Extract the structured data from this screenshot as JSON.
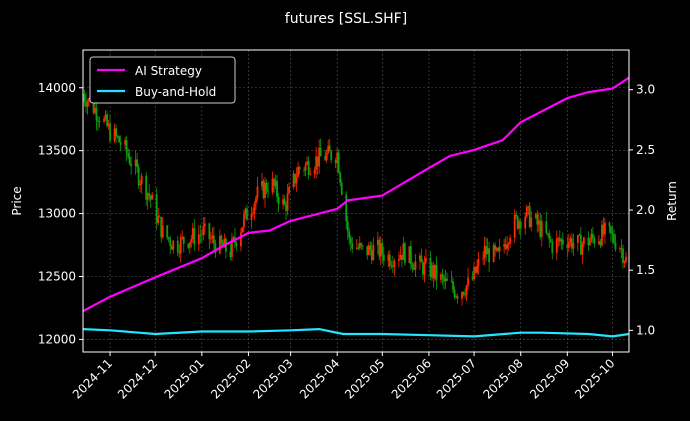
{
  "chart_data": {
    "type": "line",
    "title": "futures [SSL.SHF]",
    "xlabel": "",
    "ylabel": "Price",
    "ylabel_right": "Return",
    "xlim": [
      "2024-10-14",
      "2025-10-12"
    ],
    "ylim": [
      11900,
      14300
    ],
    "ylim_right": [
      0.82,
      3.33
    ],
    "grid": true,
    "legend_position": "top-left",
    "x_ticks": [
      "2024-11",
      "2024-12",
      "2025-01",
      "2025-02",
      "2025-03",
      "2025-04",
      "2025-05",
      "2025-06",
      "2025-07",
      "2025-08",
      "2025-09",
      "2025-10"
    ],
    "x_tick_dates": [
      "2024-11-01",
      "2024-12-01",
      "2025-01-01",
      "2025-02-01",
      "2025-03-01",
      "2025-04-01",
      "2025-05-01",
      "2025-06-01",
      "2025-07-01",
      "2025-08-01",
      "2025-09-01",
      "2025-10-01"
    ],
    "y_ticks": [
      "12000",
      "12500",
      "13000",
      "13500",
      "14000"
    ],
    "y_tick_values": [
      12000,
      12500,
      13000,
      13500,
      14000
    ],
    "y_ticks_right": [
      "1.0",
      "1.5",
      "2.0",
      "2.5",
      "3.0"
    ],
    "y_tick_values_right": [
      1.0,
      1.5,
      2.0,
      2.5,
      3.0
    ],
    "price_series": {
      "name": "",
      "up_color": "#ff2a00",
      "down_color": "#0fa00f",
      "dates": [
        "2024-10-14",
        "2024-10-24",
        "2024-11-01",
        "2024-11-09",
        "2024-11-18",
        "2024-11-27",
        "2024-12-06",
        "2024-12-14",
        "2024-12-23",
        "2025-01-02",
        "2025-01-11",
        "2025-01-20",
        "2025-01-29",
        "2025-02-07",
        "2025-02-16",
        "2025-02-25",
        "2025-03-06",
        "2025-03-14",
        "2025-03-22",
        "2025-04-01",
        "2025-04-09",
        "2025-04-18",
        "2025-04-27",
        "2025-05-06",
        "2025-05-15",
        "2025-05-24",
        "2025-06-02",
        "2025-06-11",
        "2025-06-20",
        "2025-06-29",
        "2025-07-08",
        "2025-07-17",
        "2025-07-26",
        "2025-08-04",
        "2025-08-13",
        "2025-08-22",
        "2025-08-31",
        "2025-09-09",
        "2025-09-18",
        "2025-09-27",
        "2025-10-06",
        "2025-10-11"
      ],
      "values": [
        13950,
        13800,
        13650,
        13550,
        13350,
        13150,
        12850,
        12750,
        12800,
        12850,
        12750,
        12700,
        12950,
        13150,
        13250,
        13050,
        13350,
        13400,
        13450,
        13480,
        12780,
        12700,
        12720,
        12650,
        12700,
        12600,
        12550,
        12450,
        12380,
        12450,
        12700,
        12650,
        12900,
        13000,
        12900,
        12750,
        12800,
        12750,
        12800,
        12850,
        12750,
        12600
      ]
    },
    "series": [
      {
        "name": "AI Strategy",
        "color": "#ff00ff",
        "dates": [
          "2024-10-14",
          "2024-11-01",
          "2024-12-01",
          "2025-01-01",
          "2025-01-15",
          "2025-02-01",
          "2025-02-15",
          "2025-03-01",
          "2025-03-20",
          "2025-04-01",
          "2025-04-08",
          "2025-05-01",
          "2025-06-01",
          "2025-06-15",
          "2025-07-01",
          "2025-07-20",
          "2025-08-01",
          "2025-08-15",
          "2025-09-01",
          "2025-09-15",
          "2025-10-01",
          "2025-10-12"
        ],
        "values": [
          1.16,
          1.28,
          1.44,
          1.6,
          1.7,
          1.81,
          1.83,
          1.91,
          1.97,
          2.01,
          2.08,
          2.12,
          2.35,
          2.45,
          2.5,
          2.58,
          2.73,
          2.82,
          2.93,
          2.98,
          3.01,
          3.1
        ]
      },
      {
        "name": "Buy-and-Hold",
        "color": "#22e5ff",
        "dates": [
          "2024-10-14",
          "2024-11-01",
          "2024-12-01",
          "2025-01-01",
          "2025-02-01",
          "2025-03-01",
          "2025-03-20",
          "2025-04-05",
          "2025-05-01",
          "2025-06-01",
          "2025-07-01",
          "2025-08-01",
          "2025-08-15",
          "2025-09-15",
          "2025-10-01",
          "2025-10-12"
        ],
        "values": [
          1.01,
          1.0,
          0.97,
          0.99,
          0.99,
          1.0,
          1.01,
          0.97,
          0.97,
          0.96,
          0.95,
          0.98,
          0.98,
          0.97,
          0.95,
          0.97
        ]
      }
    ]
  }
}
